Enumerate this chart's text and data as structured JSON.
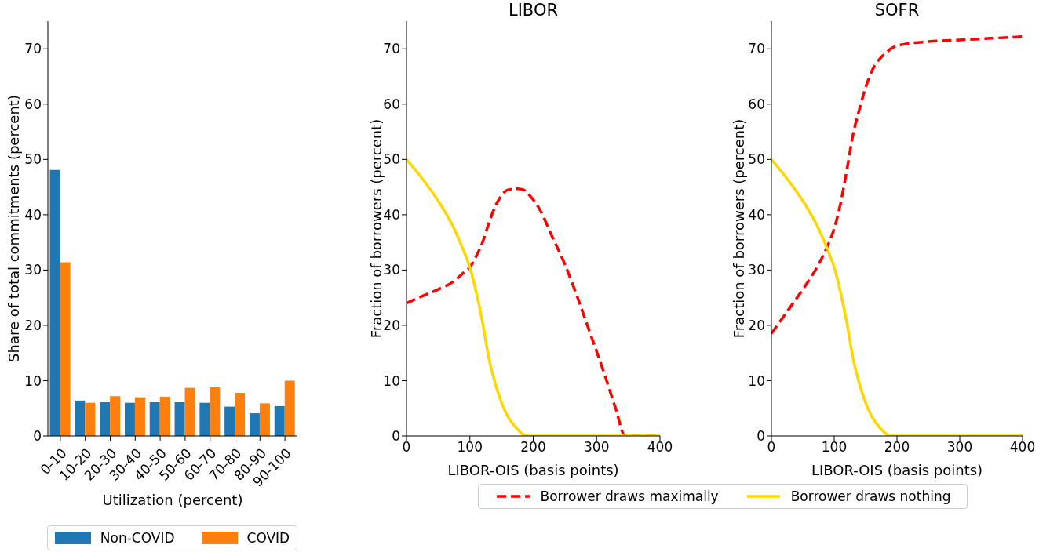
{
  "chart_data": [
    {
      "type": "bar",
      "xlabel": "Utilization (percent)",
      "ylabel": "Share of total commitments (percent)",
      "categories": [
        "0-10",
        "10-20",
        "20-30",
        "30-40",
        "40-50",
        "50-60",
        "60-70",
        "70-80",
        "80-90",
        "90-100"
      ],
      "series": [
        {
          "name": "Non-COVID",
          "color": "#1f77b4",
          "values": [
            48.1,
            6.4,
            6.1,
            6.0,
            6.1,
            6.1,
            6.0,
            5.3,
            4.1,
            5.4
          ]
        },
        {
          "name": "COVID",
          "color": "#ff7f0e",
          "values": [
            31.4,
            6.0,
            7.2,
            7.0,
            7.1,
            8.7,
            8.8,
            7.8,
            5.9,
            10.0
          ]
        }
      ],
      "ylim": [
        0,
        75
      ],
      "yticks": [
        0,
        10,
        20,
        30,
        40,
        50,
        60,
        70
      ],
      "legend": "bottom"
    },
    {
      "type": "line",
      "title": "LIBOR",
      "xlabel": "LIBOR-OIS (basis points)",
      "ylabel": "Fraction of borrowers (percent)",
      "x": [
        0,
        25,
        50,
        75,
        90,
        100,
        110,
        120,
        130,
        140,
        150,
        160,
        175,
        185,
        190,
        210,
        230,
        250,
        270,
        290,
        310,
        330,
        345,
        370,
        400
      ],
      "series": [
        {
          "name": "Borrower draws maximally",
          "color": "#ff0000",
          "line_style": "dashed",
          "values": [
            24,
            25.3,
            26.5,
            28,
            29.5,
            30.5,
            32.5,
            35,
            38.5,
            41.5,
            43.5,
            44.5,
            44.7,
            44.5,
            44,
            41,
            36,
            31,
            25,
            18.5,
            12,
            5,
            0,
            0,
            0
          ]
        },
        {
          "name": "Borrower draws nothing",
          "color": "#ffd700",
          "line_style": "solid",
          "values": [
            50,
            46.5,
            42.5,
            37.5,
            33.5,
            30.5,
            26,
            20.5,
            14,
            9.5,
            6,
            3.5,
            1.2,
            0.2,
            0,
            0,
            0,
            0,
            0,
            0,
            0,
            0,
            0,
            0,
            0
          ]
        }
      ],
      "xlim": [
        0,
        400
      ],
      "xticks": [
        0,
        100,
        200,
        300,
        400
      ],
      "ylim": [
        0,
        75
      ],
      "yticks": [
        0,
        10,
        20,
        30,
        40,
        50,
        60,
        70
      ],
      "legend": "bottom"
    },
    {
      "type": "line",
      "title": "SOFR",
      "xlabel": "LIBOR-OIS (basis points)",
      "ylabel": "Fraction of borrowers (percent)",
      "x": [
        0,
        25,
        50,
        75,
        90,
        100,
        110,
        120,
        130,
        140,
        150,
        160,
        175,
        185,
        190,
        210,
        250,
        300,
        350,
        400
      ],
      "series": [
        {
          "color": "#ff0000",
          "line_style": "dashed",
          "values": [
            18.5,
            22.5,
            26.5,
            31,
            34.5,
            37.5,
            42,
            48,
            54.5,
            59,
            63,
            66,
            68.5,
            69.5,
            70,
            70.8,
            71.3,
            71.6,
            71.9,
            72.2
          ]
        },
        {
          "color": "#ffd700",
          "line_style": "solid",
          "values": [
            50,
            46.5,
            42.5,
            37.5,
            33.5,
            30.5,
            26,
            20.5,
            14,
            9.5,
            6,
            3.5,
            1.2,
            0.2,
            0,
            0,
            0,
            0,
            0,
            0
          ]
        }
      ],
      "xlim": [
        0,
        400
      ],
      "xticks": [
        0,
        100,
        200,
        300,
        400
      ],
      "ylim": [
        0,
        75
      ],
      "yticks": [
        0,
        10,
        20,
        30,
        40,
        50,
        60,
        70
      ]
    }
  ]
}
